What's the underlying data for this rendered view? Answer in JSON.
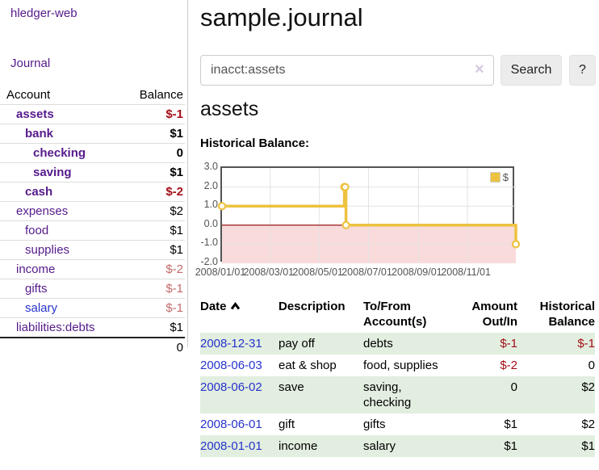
{
  "sidebar": {
    "brand": "hledger-web",
    "journal_link": "Journal",
    "accounts_table": {
      "headers": {
        "account": "Account",
        "balance": "Balance"
      },
      "rows": [
        {
          "name": "assets",
          "balance": "$-1"
        },
        {
          "name": "bank",
          "balance": "$1"
        },
        {
          "name": "checking",
          "balance": "0"
        },
        {
          "name": "saving",
          "balance": "$1"
        },
        {
          "name": "cash",
          "balance": "$-2"
        },
        {
          "name": "expenses",
          "balance": "$2"
        },
        {
          "name": "food",
          "balance": "$1"
        },
        {
          "name": "supplies",
          "balance": "$1"
        },
        {
          "name": "income",
          "balance": "$-2"
        },
        {
          "name": "gifts",
          "balance": "$-1"
        },
        {
          "name": "salary",
          "balance": "$-1"
        },
        {
          "name": "liabilities:debts",
          "balance": "$1"
        }
      ],
      "total": "0"
    }
  },
  "header": {
    "title": "sample.journal"
  },
  "search": {
    "value": "inacct:assets",
    "clear_icon": "×",
    "button_label": "Search",
    "help_label": "?"
  },
  "account_page": {
    "heading": "assets",
    "chart_title": "Historical Balance:"
  },
  "chart_data": {
    "type": "line",
    "step": true,
    "legend": "$",
    "legend_position": "top-right",
    "series": [
      {
        "name": "$",
        "color": "#edc240",
        "points": [
          [
            "2008-01-01",
            1
          ],
          [
            "2008-06-01",
            2
          ],
          [
            "2008-06-02",
            2
          ],
          [
            "2008-06-03",
            0
          ],
          [
            "2008-12-31",
            -1
          ]
        ]
      }
    ],
    "x_range": [
      "2008-01-01",
      "2008-12-31"
    ],
    "x_ticks": [
      "2008/01/01",
      "2008/03/01",
      "2008/05/01",
      "2008/07/01",
      "2008/09/01",
      "2008/11/01"
    ],
    "y_ticks": [
      "3.0",
      "2.0",
      "1.0",
      "0.0",
      "-1.0",
      "-2.0"
    ],
    "ylim": [
      -2,
      3
    ],
    "grid": true,
    "colors": {
      "grid": "#e3e3e3",
      "negative_fill": "#f9dbdb",
      "zero_line": "#8b0000",
      "marker_fill": "#ffffff",
      "border": "#545454"
    }
  },
  "register_table": {
    "headers": {
      "date": "Date",
      "description": "Description",
      "account_line1": "To/From",
      "account_line2": "Account(s)",
      "amount_line1": "Amount",
      "amount_line2": "Out/In",
      "balance_line1": "Historical",
      "balance_line2": "Balance"
    },
    "rows": [
      {
        "date": "2008-12-31",
        "description": "pay off",
        "accounts": "debts",
        "amount": "$-1",
        "balance": "$-1"
      },
      {
        "date": "2008-06-03",
        "description": "eat & shop",
        "accounts": "food, supplies",
        "amount": "$-2",
        "balance": "0"
      },
      {
        "date": "2008-06-02",
        "description": "save",
        "accounts": "saving, checking",
        "amount": "0",
        "balance": "$2"
      },
      {
        "date": "2008-06-01",
        "description": "gift",
        "accounts": "gifts",
        "amount": "$1",
        "balance": "$2"
      },
      {
        "date": "2008-01-01",
        "description": "income",
        "accounts": "salary",
        "amount": "$1",
        "balance": "$1"
      }
    ]
  }
}
